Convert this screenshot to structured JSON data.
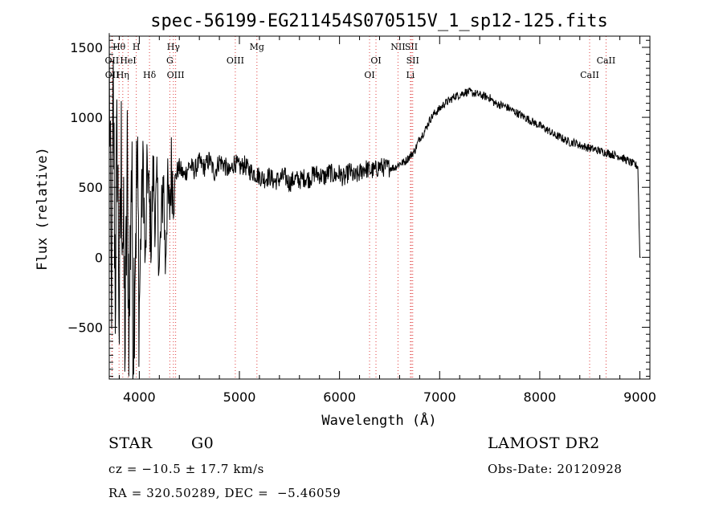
{
  "chart_data": {
    "type": "line",
    "title": "spec-56199-EG211454S070515V_1_sp12-125.fits",
    "xlabel": "Wavelength (Å)",
    "ylabel": "Flux (relative)",
    "xlim": [
      3700,
      9100
    ],
    "ylim": [
      -870,
      1580
    ],
    "x_ticks": [
      4000,
      5000,
      6000,
      7000,
      8000,
      9000
    ],
    "y_ticks": [
      -500,
      0,
      500,
      1000,
      1500
    ],
    "grid": false,
    "line_color": "#000000",
    "marker_color": "#e04040",
    "spectral_lines": [
      {
        "label": "Hθ",
        "wavelength": 3798,
        "row": 1
      },
      {
        "label": "H",
        "wavelength": 3970,
        "row": 1
      },
      {
        "label": "Hγ",
        "wavelength": 4341,
        "row": 1
      },
      {
        "label": "Mg",
        "wavelength": 5175,
        "row": 1
      },
      {
        "label": "NII",
        "wavelength": 6584,
        "row": 1
      },
      {
        "label": "SII",
        "wavelength": 6717,
        "row": 1
      },
      {
        "label": "OII",
        "wavelength": 3727,
        "row": 2
      },
      {
        "label": "HeI",
        "wavelength": 3889,
        "row": 2
      },
      {
        "label": "G",
        "wavelength": 4305,
        "row": 2
      },
      {
        "label": "OIII",
        "wavelength": 4959,
        "row": 2
      },
      {
        "label": "OI",
        "wavelength": 6364,
        "row": 2
      },
      {
        "label": "SII",
        "wavelength": 6731,
        "row": 2
      },
      {
        "label": "CaII",
        "wavelength": 8662,
        "row": 2
      },
      {
        "label": "OII",
        "wavelength": 3729,
        "row": 3
      },
      {
        "label": "Hη",
        "wavelength": 3835,
        "row": 3
      },
      {
        "label": "Hδ",
        "wavelength": 4102,
        "row": 3
      },
      {
        "label": "OIII",
        "wavelength": 4363,
        "row": 3
      },
      {
        "label": "OI",
        "wavelength": 6300,
        "row": 3
      },
      {
        "label": "Li",
        "wavelength": 6708,
        "row": 3
      },
      {
        "label": "CaII",
        "wavelength": 8498,
        "row": 3
      }
    ],
    "spectrum": {
      "x": [
        3700,
        3720,
        3740,
        3760,
        3780,
        3800,
        3820,
        3840,
        3860,
        3880,
        3900,
        3920,
        3940,
        3960,
        3980,
        4000,
        4020,
        4040,
        4060,
        4080,
        4100,
        4120,
        4140,
        4160,
        4180,
        4200,
        4220,
        4240,
        4260,
        4280,
        4300,
        4320,
        4340,
        4360,
        4380,
        4400,
        4450,
        4500,
        4550,
        4600,
        4650,
        4700,
        4750,
        4800,
        4850,
        4900,
        4950,
        5000,
        5050,
        5100,
        5150,
        5200,
        5250,
        5300,
        5350,
        5400,
        5450,
        5500,
        5550,
        5600,
        5650,
        5700,
        5750,
        5800,
        5850,
        5900,
        5950,
        6000,
        6050,
        6100,
        6150,
        6200,
        6250,
        6300,
        6350,
        6400,
        6450,
        6500,
        6550,
        6600,
        6650,
        6700,
        6750,
        6800,
        6850,
        6900,
        6950,
        7000,
        7050,
        7100,
        7150,
        7200,
        7250,
        7300,
        7350,
        7400,
        7450,
        7500,
        7550,
        7600,
        7650,
        7700,
        7750,
        7800,
        7850,
        7900,
        7950,
        8000,
        8050,
        8100,
        8150,
        8200,
        8250,
        8300,
        8350,
        8400,
        8450,
        8500,
        8550,
        8600,
        8650,
        8700,
        8750,
        8800,
        8850,
        8900,
        8950,
        8980,
        9000,
        9010
      ],
      "y": [
        1400,
        -380,
        1100,
        -200,
        900,
        -450,
        700,
        100,
        -600,
        600,
        -550,
        750,
        -500,
        200,
        600,
        -350,
        300,
        680,
        -150,
        700,
        350,
        150,
        620,
        280,
        480,
        -80,
        200,
        620,
        -40,
        480,
        300,
        640,
        500,
        560,
        620,
        640,
        580,
        660,
        620,
        680,
        640,
        700,
        600,
        690,
        660,
        600,
        680,
        640,
        660,
        620,
        600,
        580,
        560,
        580,
        540,
        560,
        580,
        530,
        560,
        550,
        570,
        560,
        600,
        590,
        570,
        610,
        580,
        600,
        560,
        620,
        570,
        600,
        640,
        620,
        620,
        650,
        640,
        640,
        640,
        670,
        680,
        720,
        760,
        850,
        900,
        980,
        1030,
        1060,
        1100,
        1120,
        1150,
        1160,
        1180,
        1180,
        1170,
        1160,
        1150,
        1140,
        1100,
        1090,
        1080,
        1060,
        1040,
        1020,
        1000,
        980,
        960,
        940,
        920,
        900,
        870,
        860,
        840,
        820,
        820,
        800,
        790,
        780,
        770,
        760,
        750,
        740,
        730,
        720,
        700,
        680,
        660,
        650,
        0,
        0
      ]
    }
  },
  "info": {
    "object_class": "STAR",
    "subclass": "G0",
    "survey": "LAMOST DR2",
    "velocity": "cz = −10.5 ± 17.7 km/s",
    "obs_date": "Obs-Date: 20120928",
    "coords": "RA = 320.50289, DEC =  −5.46059"
  }
}
